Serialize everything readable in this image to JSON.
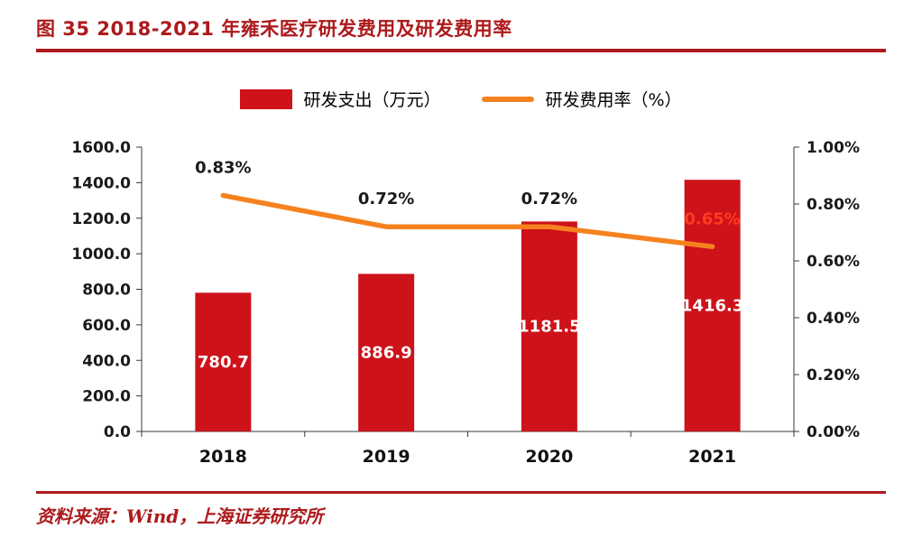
{
  "title": "图 35 2018-2021 年雍禾医疗研发费用及研发费用率",
  "source": "资料来源：Wind，上海证券研究所",
  "legend": {
    "bar_label": "研发支出（万元）",
    "line_label": "研发费用率（%）"
  },
  "colors": {
    "accent": "#ad1a1d",
    "bar": "#ce121a",
    "line": "#f5821f",
    "bar_value_label": "#ffffff",
    "axis_text": "#1a1a1a"
  },
  "chart_data": {
    "type": "bar",
    "subtype": "bar-and-line-combo",
    "categories": [
      "2018",
      "2019",
      "2020",
      "2021"
    ],
    "series": [
      {
        "name": "研发支出（万元）",
        "type": "bar",
        "axis": "left",
        "values": [
          780.7,
          886.9,
          1181.5,
          1416.3
        ],
        "value_labels": [
          "780.7",
          "886.9",
          "1181.5",
          "1416.3"
        ]
      },
      {
        "name": "研发费用率（%）",
        "type": "line",
        "axis": "right",
        "values": [
          0.83,
          0.72,
          0.72,
          0.65
        ],
        "value_labels": [
          "0.83%",
          "0.72%",
          "0.72%",
          "0.65%"
        ],
        "label_colors": [
          "#1a1a1a",
          "#1a1a1a",
          "#1a1a1a",
          "#ff3b1f"
        ]
      }
    ],
    "left_axis": {
      "min": 0,
      "max": 1600,
      "step": 200,
      "tick_labels": [
        "0.0",
        "200.0",
        "400.0",
        "600.0",
        "800.0",
        "1000.0",
        "1200.0",
        "1400.0",
        "1600.0"
      ]
    },
    "right_axis": {
      "min": 0,
      "max": 1.0,
      "step": 0.2,
      "tick_labels": [
        "0.00%",
        "0.20%",
        "0.40%",
        "0.60%",
        "0.80%",
        "1.00%"
      ]
    },
    "grid": false,
    "legend_position": "top-center"
  }
}
